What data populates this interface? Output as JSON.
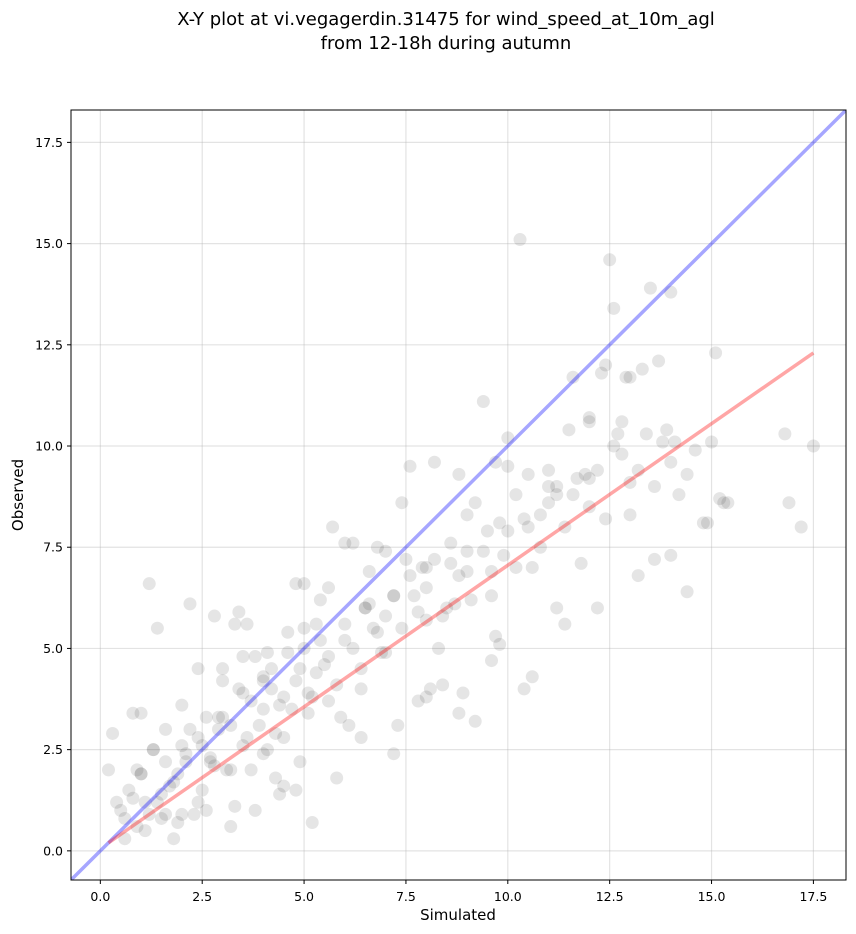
{
  "chart_data": {
    "type": "scatter",
    "title_line1": "X-Y plot at vi.vegagerdin.31475 for wind_speed_at_10m_agl",
    "title_line2": "from 12-18h during autumn",
    "xlabel": "Simulated",
    "ylabel": "Observed",
    "xlim": [
      -0.72,
      18.3
    ],
    "ylim": [
      -0.72,
      18.3
    ],
    "xticks": [
      "0.0",
      "2.5",
      "5.0",
      "7.5",
      "10.0",
      "12.5",
      "15.0",
      "17.5"
    ],
    "yticks": [
      "0.0",
      "2.5",
      "5.0",
      "7.5",
      "10.0",
      "12.5",
      "15.0",
      "17.5"
    ],
    "grid": true,
    "colors": {
      "points": "#000000",
      "identity_line": "#0000ff",
      "fit_line": "#ff0000"
    },
    "identity_line": {
      "x": [
        -0.72,
        18.3
      ],
      "y": [
        -0.72,
        18.3
      ]
    },
    "fit_line": {
      "x": [
        0.2,
        17.5
      ],
      "y": [
        0.2,
        12.3
      ]
    },
    "points": {
      "x": [
        0.3,
        0.2,
        1.2,
        1.4,
        0.8,
        1.0,
        0.5,
        0.9,
        1.1,
        1.3,
        1.5,
        1.7,
        1.9,
        2.1,
        2.3,
        2.5,
        2.7,
        2.9,
        3.1,
        3.3,
        3.5,
        3.7,
        3.9,
        4.1,
        4.3,
        4.5,
        4.7,
        4.9,
        5.1,
        5.3,
        0.6,
        0.7,
        1.0,
        1.2,
        1.4,
        1.6,
        1.8,
        2.0,
        2.2,
        2.4,
        2.6,
        2.8,
        3.0,
        3.2,
        3.4,
        3.6,
        3.8,
        4.0,
        4.2,
        4.4,
        4.6,
        4.8,
        5.0,
        5.2,
        5.4,
        5.6,
        5.8,
        6.0,
        6.2,
        6.4,
        6.6,
        6.8,
        7.0,
        7.2,
        7.4,
        7.6,
        7.8,
        8.0,
        8.2,
        8.4,
        8.6,
        8.8,
        9.0,
        9.2,
        9.4,
        9.6,
        9.8,
        10.0,
        10.2,
        10.4,
        10.6,
        10.8,
        11.0,
        11.2,
        11.4,
        11.6,
        11.8,
        12.0,
        12.2,
        12.4,
        12.6,
        12.8,
        13.0,
        13.2,
        13.4,
        13.6,
        13.8,
        14.0,
        14.2,
        14.4,
        14.6,
        14.8,
        15.0,
        15.2,
        15.4,
        16.9,
        17.2,
        17.5,
        1.5,
        2.0,
        2.5,
        3.0,
        3.5,
        4.0,
        4.5,
        5.0,
        5.5,
        6.0,
        6.5,
        7.0,
        7.5,
        8.0,
        8.5,
        9.0,
        9.5,
        10.0,
        10.5,
        11.0,
        11.5,
        12.0,
        12.5,
        13.0,
        13.5,
        14.0,
        2.2,
        2.8,
        3.4,
        4.2,
        4.8,
        5.6,
        6.2,
        6.8,
        7.6,
        8.2,
        8.8,
        9.4,
        10.3,
        11.6,
        12.4,
        13.7,
        14.1,
        15.1,
        16.8,
        1.1,
        1.8,
        2.6,
        3.2,
        3.8,
        4.4,
        5.2,
        5.8,
        6.4,
        7.2,
        7.8,
        8.4,
        9.2,
        9.8,
        10.6,
        11.4,
        12.2,
        13.2,
        0.4,
        0.9,
        1.6,
        2.4,
        3.6,
        4.6,
        5.4,
        6.6,
        7.4,
        8.6,
        9.6,
        10.8,
        12.6,
        0.6,
        1.3,
        2.1,
        2.9,
        3.7,
        4.3,
        5.1,
        5.9,
        6.7,
        7.7,
        8.3,
        9.1,
        9.9,
        11.2,
        12.3,
        13.3,
        14.4,
        1.0,
        1.9,
        2.7,
        3.5,
        4.5,
        5.3,
        6.1,
        6.9,
        7.9,
        8.7,
        9.7,
        10.5,
        11.9,
        12.9,
        13.9,
        15.3,
        2.0,
        3.0,
        4.0,
        5.0,
        6.0,
        7.0,
        8.0,
        9.0,
        10.0,
        11.0,
        12.0,
        13.0,
        14.0,
        0.8,
        1.6,
        2.4,
        3.2,
        4.0,
        4.8,
        5.6,
        6.4,
        7.2,
        8.0,
        8.8,
        9.6,
        10.4,
        11.2,
        12.0,
        12.8,
        13.6,
        14.9,
        3.3,
        4.1,
        4.9,
        5.7,
        6.5,
        7.3,
        8.1,
        8.9,
        9.7,
        10.2,
        11.7,
        12.7
      ],
      "y": [
        2.9,
        2.0,
        6.6,
        5.5,
        3.4,
        3.4,
        1.0,
        0.6,
        1.2,
        2.5,
        0.8,
        1.6,
        1.9,
        2.4,
        0.9,
        1.5,
        2.2,
        3.0,
        2.0,
        1.1,
        2.6,
        2.0,
        3.1,
        2.5,
        1.8,
        2.8,
        3.5,
        2.2,
        3.9,
        4.4,
        0.3,
        1.5,
        1.9,
        0.9,
        1.2,
        2.2,
        1.7,
        2.6,
        3.0,
        1.2,
        3.3,
        2.1,
        4.2,
        3.1,
        4.0,
        2.8,
        4.8,
        3.5,
        4.0,
        3.6,
        4.9,
        4.2,
        5.0,
        3.8,
        5.2,
        4.8,
        4.1,
        5.6,
        5.0,
        4.5,
        6.1,
        5.4,
        4.9,
        6.3,
        5.5,
        6.8,
        5.9,
        6.5,
        7.2,
        5.8,
        7.6,
        6.8,
        6.9,
        8.6,
        7.4,
        6.3,
        8.1,
        7.9,
        8.8,
        8.2,
        7.0,
        7.5,
        8.6,
        9.0,
        8.0,
        8.8,
        7.1,
        10.6,
        9.4,
        8.2,
        10.0,
        9.8,
        9.1,
        9.4,
        10.3,
        9.0,
        10.1,
        9.6,
        8.8,
        9.3,
        9.9,
        8.1,
        10.1,
        8.7,
        8.6,
        8.6,
        8.0,
        10.0,
        1.4,
        0.9,
        2.6,
        3.3,
        3.9,
        4.3,
        3.8,
        5.5,
        4.6,
        5.2,
        6.0,
        5.8,
        7.2,
        7.0,
        6.0,
        7.4,
        7.9,
        9.5,
        9.3,
        9.0,
        10.4,
        8.5,
        14.6,
        11.7,
        13.9,
        13.8,
        6.1,
        5.8,
        5.9,
        4.5,
        6.6,
        6.5,
        7.6,
        7.5,
        9.5,
        9.6,
        9.3,
        11.1,
        15.1,
        11.7,
        12.0,
        12.1,
        10.1,
        12.3,
        10.3,
        0.5,
        0.3,
        1.0,
        0.6,
        1.0,
        1.4,
        0.7,
        1.8,
        2.8,
        2.4,
        3.7,
        4.1,
        3.2,
        5.1,
        4.3,
        5.6,
        6.0,
        6.8,
        1.2,
        2.0,
        3.0,
        4.5,
        5.6,
        5.4,
        6.2,
        6.9,
        8.6,
        7.1,
        6.9,
        8.3,
        13.4,
        0.8,
        2.5,
        2.2,
        3.3,
        3.7,
        2.9,
        3.4,
        3.3,
        5.5,
        6.3,
        5.0,
        6.2,
        7.3,
        8.8,
        11.8,
        11.9,
        6.4,
        1.9,
        0.7,
        2.3,
        4.8,
        1.6,
        5.6,
        3.1,
        4.9,
        7.0,
        6.1,
        9.6,
        8.0,
        9.3,
        11.7,
        10.4,
        8.6,
        3.6,
        4.5,
        4.2,
        6.6,
        7.6,
        7.4,
        3.8,
        8.3,
        10.2,
        9.4,
        10.7,
        8.3,
        7.3,
        1.3,
        0.9,
        2.8,
        2.0,
        2.4,
        1.5,
        3.7,
        4.0,
        6.3,
        5.7,
        3.4,
        4.7,
        4.0,
        6.0,
        9.2,
        10.6,
        7.2,
        8.1,
        5.6,
        4.9,
        4.5,
        8.0,
        6.0,
        3.1,
        4.0,
        3.9,
        5.3,
        7.0,
        9.2,
        10.3
      ]
    }
  }
}
